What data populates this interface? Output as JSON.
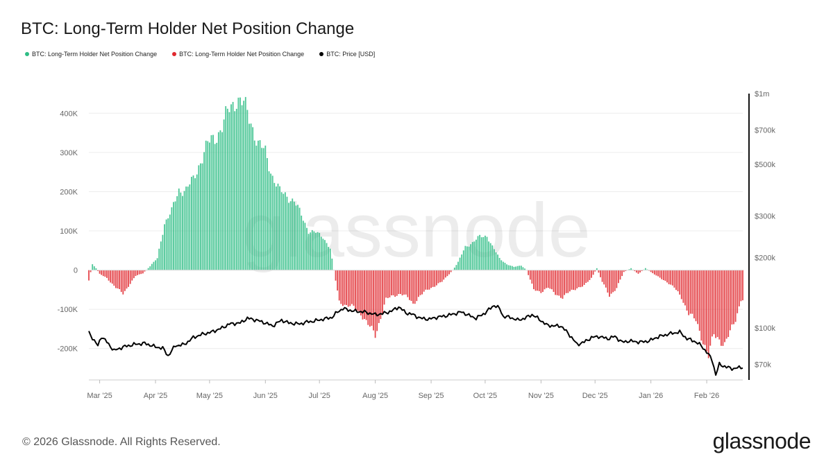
{
  "header": {
    "title": "BTC: Long-Term Holder Net Position Change"
  },
  "legend": [
    {
      "label": "BTC: Long-Term Holder Net Position Change",
      "color": "#2ebd85"
    },
    {
      "label": "BTC: Long-Term Holder Net Position Change",
      "color": "#e0282e"
    },
    {
      "label": "BTC: Price [USD]",
      "color": "#000000"
    }
  ],
  "watermark": "glassnode",
  "footer": {
    "copyright": "© 2026 Glassnode. All Rights Reserved.",
    "brand": "glassnode"
  },
  "chart_data": {
    "type": "bar",
    "title": "BTC: Long-Term Holder Net Position Change",
    "colors": {
      "positive": "#2ebd85",
      "negative": "#e0282e",
      "price": "#000000"
    },
    "x_range": [
      "2025-02-23",
      "2026-02-21"
    ],
    "x_ticks": [
      {
        "label": "Mar '25",
        "date": "2025-03-01"
      },
      {
        "label": "Apr '25",
        "date": "2025-04-01"
      },
      {
        "label": "May '25",
        "date": "2025-05-01"
      },
      {
        "label": "Jun '25",
        "date": "2025-06-01"
      },
      {
        "label": "Jul '25",
        "date": "2025-07-01"
      },
      {
        "label": "Aug '25",
        "date": "2025-08-01"
      },
      {
        "label": "Sep '25",
        "date": "2025-09-01"
      },
      {
        "label": "Oct '25",
        "date": "2025-10-01"
      },
      {
        "label": "Nov '25",
        "date": "2025-11-01"
      },
      {
        "label": "Dec '25",
        "date": "2025-12-01"
      },
      {
        "label": "Jan '26",
        "date": "2026-01-01"
      },
      {
        "label": "Feb '26",
        "date": "2026-02-01"
      }
    ],
    "y_left": {
      "range": [
        -280000,
        450000
      ],
      "ticks": [
        {
          "label": "400K",
          "value": 400000
        },
        {
          "label": "300K",
          "value": 300000
        },
        {
          "label": "200K",
          "value": 200000
        },
        {
          "label": "100K",
          "value": 100000
        },
        {
          "label": "0",
          "value": 0
        },
        {
          "label": "-100K",
          "value": -100000
        },
        {
          "label": "-200K",
          "value": -200000
        }
      ]
    },
    "y_right": {
      "scale": "log",
      "range": [
        60000,
        1000000
      ],
      "ticks": [
        {
          "label": "$1m",
          "value": 1000000
        },
        {
          "label": "$700k",
          "value": 700000
        },
        {
          "label": "$500k",
          "value": 500000
        },
        {
          "label": "$300k",
          "value": 300000
        },
        {
          "label": "$200k",
          "value": 200000
        },
        {
          "label": "$100k",
          "value": 100000
        },
        {
          "label": "$70k",
          "value": 70000
        }
      ]
    },
    "series": [
      {
        "name": "BTC: Long-Term Holder Net Position Change",
        "kind": "bar",
        "anchors": [
          [
            "2025-02-23",
            -25000
          ],
          [
            "2025-02-25",
            15000
          ],
          [
            "2025-02-27",
            5000
          ],
          [
            "2025-03-01",
            -10000
          ],
          [
            "2025-03-05",
            -20000
          ],
          [
            "2025-03-10",
            -45000
          ],
          [
            "2025-03-14",
            -60000
          ],
          [
            "2025-03-17",
            -40000
          ],
          [
            "2025-03-21",
            -15000
          ],
          [
            "2025-03-25",
            -8000
          ],
          [
            "2025-03-29",
            10000
          ],
          [
            "2025-04-02",
            30000
          ],
          [
            "2025-04-06",
            120000
          ],
          [
            "2025-04-10",
            150000
          ],
          [
            "2025-04-14",
            205000
          ],
          [
            "2025-04-18",
            205000
          ],
          [
            "2025-04-22",
            230000
          ],
          [
            "2025-04-26",
            280000
          ],
          [
            "2025-04-30",
            320000
          ],
          [
            "2025-05-04",
            340000
          ],
          [
            "2025-05-08",
            365000
          ],
          [
            "2025-05-12",
            410000
          ],
          [
            "2025-05-16",
            440000
          ],
          [
            "2025-05-20",
            420000
          ],
          [
            "2025-05-24",
            380000
          ],
          [
            "2025-05-28",
            320000
          ],
          [
            "2025-06-01",
            300000
          ],
          [
            "2025-06-05",
            240000
          ],
          [
            "2025-06-09",
            200000
          ],
          [
            "2025-06-13",
            190000
          ],
          [
            "2025-06-17",
            175000
          ],
          [
            "2025-06-21",
            140000
          ],
          [
            "2025-06-25",
            100000
          ],
          [
            "2025-06-29",
            95000
          ],
          [
            "2025-07-03",
            85000
          ],
          [
            "2025-07-07",
            55000
          ],
          [
            "2025-07-09",
            0
          ],
          [
            "2025-07-12",
            -80000
          ],
          [
            "2025-07-16",
            -90000
          ],
          [
            "2025-07-20",
            -95000
          ],
          [
            "2025-07-24",
            -110000
          ],
          [
            "2025-07-28",
            -140000
          ],
          [
            "2025-08-01",
            -165000
          ],
          [
            "2025-08-04",
            -120000
          ],
          [
            "2025-08-07",
            -75000
          ],
          [
            "2025-08-11",
            -65000
          ],
          [
            "2025-08-15",
            -60000
          ],
          [
            "2025-08-19",
            -70000
          ],
          [
            "2025-08-22",
            -85000
          ],
          [
            "2025-08-26",
            -65000
          ],
          [
            "2025-08-30",
            -50000
          ],
          [
            "2025-09-03",
            -40000
          ],
          [
            "2025-09-07",
            -30000
          ],
          [
            "2025-09-10",
            -15000
          ],
          [
            "2025-09-13",
            0
          ],
          [
            "2025-09-16",
            20000
          ],
          [
            "2025-09-20",
            60000
          ],
          [
            "2025-09-24",
            70000
          ],
          [
            "2025-09-28",
            85000
          ],
          [
            "2025-10-02",
            88000
          ],
          [
            "2025-10-05",
            60000
          ],
          [
            "2025-10-09",
            30000
          ],
          [
            "2025-10-13",
            15000
          ],
          [
            "2025-10-17",
            8000
          ],
          [
            "2025-10-21",
            12000
          ],
          [
            "2025-10-24",
            0
          ],
          [
            "2025-10-28",
            -50000
          ],
          [
            "2025-11-01",
            -55000
          ],
          [
            "2025-11-05",
            -45000
          ],
          [
            "2025-11-09",
            -60000
          ],
          [
            "2025-11-13",
            -70000
          ],
          [
            "2025-11-17",
            -55000
          ],
          [
            "2025-11-21",
            -45000
          ],
          [
            "2025-11-25",
            -40000
          ],
          [
            "2025-11-29",
            -20000
          ],
          [
            "2025-12-02",
            5000
          ],
          [
            "2025-12-05",
            -30000
          ],
          [
            "2025-12-09",
            -65000
          ],
          [
            "2025-12-13",
            -45000
          ],
          [
            "2025-12-17",
            -5000
          ],
          [
            "2025-12-21",
            5000
          ],
          [
            "2025-12-25",
            -10000
          ],
          [
            "2025-12-29",
            5000
          ],
          [
            "2026-01-02",
            -8000
          ],
          [
            "2026-01-06",
            -20000
          ],
          [
            "2026-01-10",
            -30000
          ],
          [
            "2026-01-14",
            -45000
          ],
          [
            "2026-01-18",
            -70000
          ],
          [
            "2026-01-22",
            -110000
          ],
          [
            "2026-01-26",
            -130000
          ],
          [
            "2026-01-30",
            -180000
          ],
          [
            "2026-02-02",
            -220000
          ],
          [
            "2026-02-05",
            -165000
          ],
          [
            "2026-02-08",
            -175000
          ],
          [
            "2026-02-11",
            -190000
          ],
          [
            "2026-02-14",
            -160000
          ],
          [
            "2026-02-17",
            -125000
          ],
          [
            "2026-02-20",
            -75000
          ]
        ]
      },
      {
        "name": "BTC: Price [USD]",
        "kind": "line",
        "anchors": [
          [
            "2025-02-23",
            96000
          ],
          [
            "2025-02-26",
            88000
          ],
          [
            "2025-02-28",
            84000
          ],
          [
            "2025-03-02",
            92000
          ],
          [
            "2025-03-05",
            87000
          ],
          [
            "2025-03-09",
            80000
          ],
          [
            "2025-03-14",
            83000
          ],
          [
            "2025-03-20",
            85000
          ],
          [
            "2025-03-26",
            86000
          ],
          [
            "2025-04-01",
            83000
          ],
          [
            "2025-04-05",
            82000
          ],
          [
            "2025-04-08",
            76000
          ],
          [
            "2025-04-12",
            84000
          ],
          [
            "2025-04-17",
            85000
          ],
          [
            "2025-04-22",
            91000
          ],
          [
            "2025-04-27",
            94000
          ],
          [
            "2025-05-02",
            96000
          ],
          [
            "2025-05-08",
            100000
          ],
          [
            "2025-05-12",
            104000
          ],
          [
            "2025-05-18",
            105000
          ],
          [
            "2025-05-22",
            110000
          ],
          [
            "2025-05-27",
            108000
          ],
          [
            "2025-06-01",
            105000
          ],
          [
            "2025-06-05",
            102000
          ],
          [
            "2025-06-10",
            108000
          ],
          [
            "2025-06-14",
            105000
          ],
          [
            "2025-06-20",
            104000
          ],
          [
            "2025-06-24",
            106000
          ],
          [
            "2025-06-28",
            107000
          ],
          [
            "2025-07-03",
            109000
          ],
          [
            "2025-07-08",
            111000
          ],
          [
            "2025-07-11",
            117000
          ],
          [
            "2025-07-14",
            121000
          ],
          [
            "2025-07-20",
            118000
          ],
          [
            "2025-07-26",
            117000
          ],
          [
            "2025-08-01",
            114000
          ],
          [
            "2025-08-05",
            115000
          ],
          [
            "2025-08-10",
            118000
          ],
          [
            "2025-08-14",
            123000
          ],
          [
            "2025-08-18",
            116000
          ],
          [
            "2025-08-22",
            114000
          ],
          [
            "2025-08-26",
            110000
          ],
          [
            "2025-08-31",
            109000
          ],
          [
            "2025-09-04",
            111000
          ],
          [
            "2025-09-10",
            113000
          ],
          [
            "2025-09-14",
            115000
          ],
          [
            "2025-09-18",
            117000
          ],
          [
            "2025-09-22",
            113000
          ],
          [
            "2025-09-26",
            110000
          ],
          [
            "2025-10-01",
            116000
          ],
          [
            "2025-10-06",
            125000
          ],
          [
            "2025-10-09",
            121000
          ],
          [
            "2025-10-11",
            112000
          ],
          [
            "2025-10-15",
            111000
          ],
          [
            "2025-10-19",
            108000
          ],
          [
            "2025-10-23",
            110000
          ],
          [
            "2025-10-27",
            114000
          ],
          [
            "2025-10-31",
            109000
          ],
          [
            "2025-11-04",
            103000
          ],
          [
            "2025-11-08",
            102000
          ],
          [
            "2025-11-12",
            102000
          ],
          [
            "2025-11-16",
            95000
          ],
          [
            "2025-11-21",
            85000
          ],
          [
            "2025-11-25",
            87000
          ],
          [
            "2025-11-29",
            91000
          ],
          [
            "2025-12-03",
            92000
          ],
          [
            "2025-12-08",
            90000
          ],
          [
            "2025-12-12",
            92000
          ],
          [
            "2025-12-16",
            87000
          ],
          [
            "2025-12-20",
            88000
          ],
          [
            "2025-12-26",
            87000
          ],
          [
            "2025-12-31",
            88000
          ],
          [
            "2026-01-04",
            91000
          ],
          [
            "2026-01-08",
            93000
          ],
          [
            "2026-01-13",
            95000
          ],
          [
            "2026-01-17",
            96000
          ],
          [
            "2026-01-21",
            90000
          ],
          [
            "2026-01-25",
            88000
          ],
          [
            "2026-01-29",
            84000
          ],
          [
            "2026-02-02",
            77000
          ],
          [
            "2026-02-04",
            73000
          ],
          [
            "2026-02-06",
            63000
          ],
          [
            "2026-02-08",
            70000
          ],
          [
            "2026-02-12",
            68000
          ],
          [
            "2026-02-16",
            67000
          ],
          [
            "2026-02-20",
            68000
          ]
        ]
      }
    ]
  }
}
